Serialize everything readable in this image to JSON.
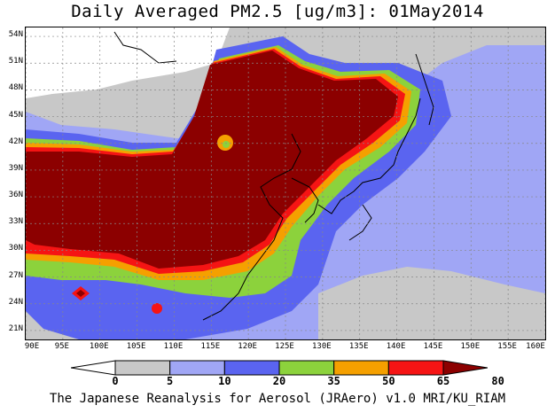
{
  "title": "Daily Averaged PM2.5 [ug/m3]: 01May2014",
  "footer": "The Japanese Reanalysis for Aerosol (JRAero) v1.0 MRI/KU_RIAM",
  "map": {
    "lat_range": [
      20,
      55
    ],
    "lon_range": [
      90,
      160
    ],
    "lat_ticks": [
      {
        "value": 54,
        "label": "54N"
      },
      {
        "value": 51,
        "label": "51N"
      },
      {
        "value": 48,
        "label": "48N"
      },
      {
        "value": 45,
        "label": "45N"
      },
      {
        "value": 42,
        "label": "42N"
      },
      {
        "value": 39,
        "label": "39N"
      },
      {
        "value": 36,
        "label": "36N"
      },
      {
        "value": 33,
        "label": "33N"
      },
      {
        "value": 30,
        "label": "30N"
      },
      {
        "value": 27,
        "label": "27N"
      },
      {
        "value": 24,
        "label": "24N"
      },
      {
        "value": 21,
        "label": "21N"
      }
    ],
    "lon_ticks": [
      {
        "value": 90,
        "label": "90E"
      },
      {
        "value": 95,
        "label": "95E"
      },
      {
        "value": 100,
        "label": "100E"
      },
      {
        "value": 105,
        "label": "105E"
      },
      {
        "value": 110,
        "label": "110E"
      },
      {
        "value": 115,
        "label": "115E"
      },
      {
        "value": 120,
        "label": "120E"
      },
      {
        "value": 125,
        "label": "125E"
      },
      {
        "value": 130,
        "label": "130E"
      },
      {
        "value": 135,
        "label": "135E"
      },
      {
        "value": 140,
        "label": "140E"
      },
      {
        "value": 145,
        "label": "145E"
      },
      {
        "value": 150,
        "label": "150E"
      },
      {
        "value": 155,
        "label": "155E"
      },
      {
        "value": 160,
        "label": "160E"
      }
    ]
  },
  "colorbar": {
    "levels": [
      {
        "label": "0",
        "color": "#ffffff"
      },
      {
        "label": "5",
        "color": "#c8c8c8"
      },
      {
        "label": "10",
        "color": "#a0a6f5"
      },
      {
        "label": "20",
        "color": "#5a64f0"
      },
      {
        "label": "35",
        "color": "#8cd23c"
      },
      {
        "label": "50",
        "color": "#f5a000"
      },
      {
        "label": "65",
        "color": "#f51414"
      },
      {
        "label": "80",
        "color": "#8c0000"
      }
    ],
    "below_min_color": "#ffffff",
    "above_max_color": "#8c0000"
  },
  "regions": {
    "gray": "#c8c8c8",
    "lightblue": "#a0a6f5",
    "blue": "#5a64f0",
    "green": "#8cd23c",
    "orange": "#f5a000",
    "red": "#f51414",
    "darkred": "#8c0000",
    "grid_color": "#888888",
    "coast_color": "#000000"
  }
}
